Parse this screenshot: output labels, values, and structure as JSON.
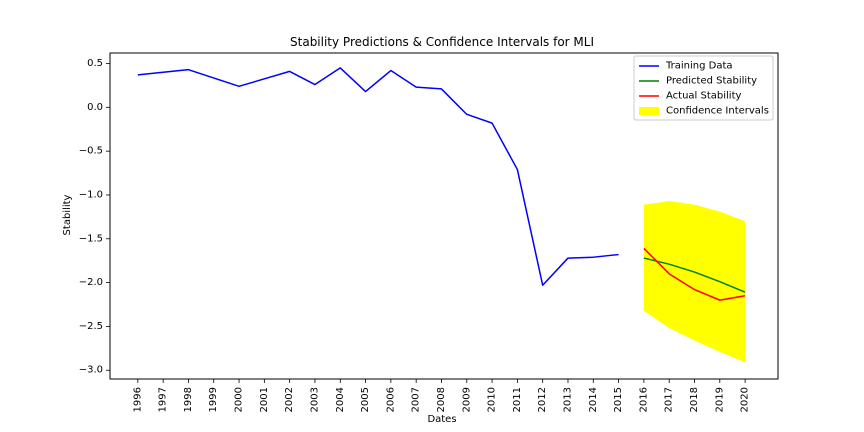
{
  "chart_data": {
    "type": "line",
    "title": "Stability Predictions & Confidence Intervals for MLI",
    "xlabel": "Dates",
    "ylabel": "Stability",
    "x_ticks": [
      "1996",
      "1997",
      "1998",
      "1999",
      "2000",
      "2001",
      "2002",
      "2003",
      "2004",
      "2005",
      "2006",
      "2007",
      "2008",
      "2009",
      "2010",
      "2011",
      "2012",
      "2013",
      "2014",
      "2015",
      "2016",
      "2017",
      "2018",
      "2019",
      "2020"
    ],
    "y_ticks": [
      "0.5",
      "0.0",
      "−0.5",
      "−1.0",
      "−1.5",
      "−2.0",
      "−2.5",
      "−3.0"
    ],
    "y_tick_values": [
      0.5,
      0.0,
      -0.5,
      -1.0,
      -1.5,
      -2.0,
      -2.5,
      -3.0
    ],
    "ylim": [
      -3.1,
      0.62
    ],
    "xlim": [
      1994.9,
      2021.3
    ],
    "grid": false,
    "legend_position": "top-right",
    "series": [
      {
        "name": "Training Data",
        "color": "#0000ff",
        "x": [
          1996,
          1998,
          2000,
          2002,
          2003,
          2004,
          2005,
          2006,
          2007,
          2008,
          2009,
          2010,
          2011,
          2012,
          2013,
          2014,
          2015
        ],
        "y": [
          0.37,
          0.43,
          0.24,
          0.41,
          0.26,
          0.45,
          0.18,
          0.42,
          0.23,
          0.21,
          -0.08,
          -0.18,
          -0.71,
          -2.03,
          -1.72,
          -1.71,
          -1.68
        ]
      },
      {
        "name": "Predicted Stability",
        "color": "#008000",
        "x": [
          2016,
          2017,
          2018,
          2019,
          2020
        ],
        "y": [
          -1.72,
          -1.79,
          -1.88,
          -1.99,
          -2.11
        ]
      },
      {
        "name": "Actual Stability",
        "color": "#ff0000",
        "x": [
          2016,
          2017,
          2018,
          2019,
          2020
        ],
        "y": [
          -1.61,
          -1.9,
          -2.08,
          -2.2,
          -2.15
        ]
      }
    ],
    "confidence_interval": {
      "name": "Confidence Intervals",
      "color": "#ffff00",
      "x": [
        2016,
        2017,
        2018,
        2019,
        2020
      ],
      "upper": [
        -1.11,
        -1.07,
        -1.11,
        -1.19,
        -1.3
      ],
      "lower": [
        -2.32,
        -2.52,
        -2.66,
        -2.79,
        -2.91
      ]
    }
  }
}
